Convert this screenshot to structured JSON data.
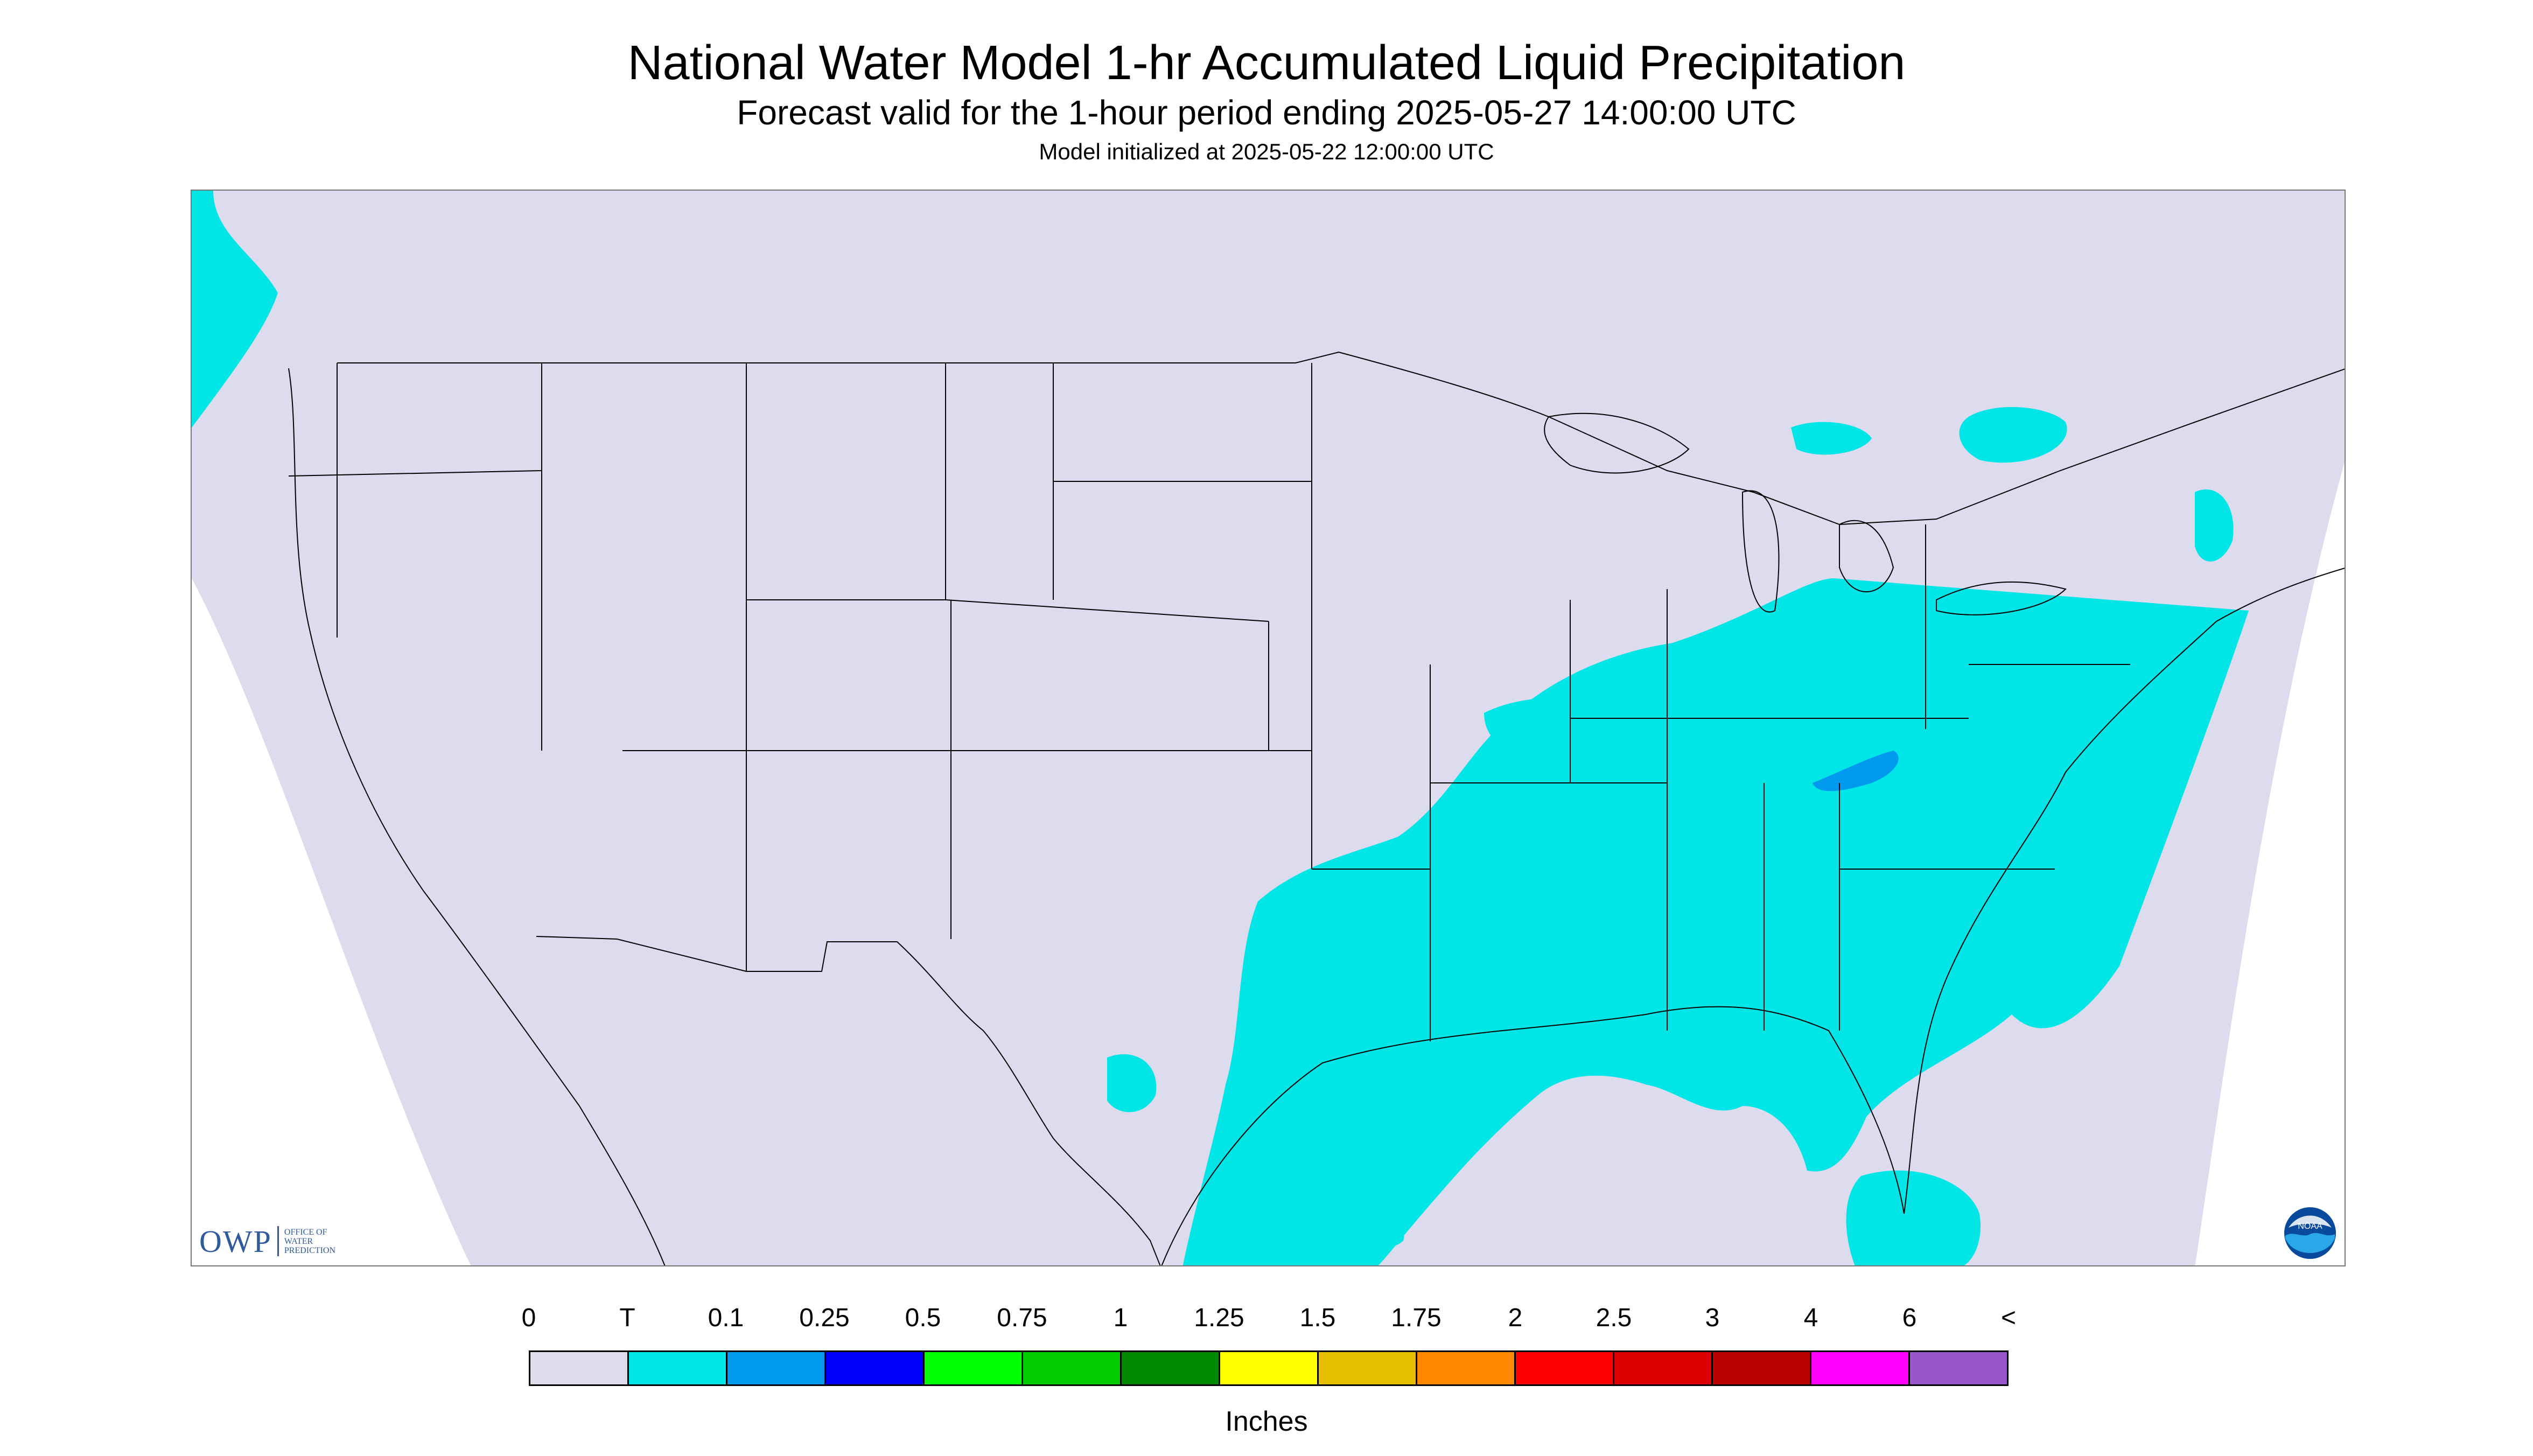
{
  "title": "National Water Model 1-hr Accumulated Liquid Precipitation",
  "subtitle": "Forecast valid for the 1-hour period ending 2025-05-27 14:00:00 UTC",
  "init_line": "Model initialized at 2025-05-22 12:00:00 UTC",
  "map": {
    "background_color": "#dcdcee",
    "boundary_color": "#000000",
    "precip_regions": [
      {
        "name": "Pacific Northwest coast",
        "category": "T"
      },
      {
        "name": "Southeast and Gulf Coast",
        "category": "T"
      },
      {
        "name": "Mid-Atlantic and Ohio Valley",
        "category": "T"
      },
      {
        "name": "Great Lakes / Southern Ontario",
        "category": "T"
      },
      {
        "name": "Virginia band",
        "category": "0.1"
      }
    ]
  },
  "legend": {
    "labels": [
      "0",
      "T",
      "0.1",
      "0.25",
      "0.5",
      "0.75",
      "1",
      "1.25",
      "1.5",
      "1.75",
      "2",
      "2.5",
      "3",
      "4",
      "6",
      "<"
    ],
    "colors": [
      "#dcdcee",
      "#00e5e5",
      "#0099ee",
      "#0000ff",
      "#00ff00",
      "#00cc00",
      "#008800",
      "#ffff00",
      "#e6bf00",
      "#ff8800",
      "#ff0000",
      "#dd0000",
      "#bb0000",
      "#ff00ff",
      "#9955cc"
    ],
    "units": "Inches"
  },
  "logos": {
    "owp": {
      "text": "OWP",
      "subtitle_lines": [
        "OFFICE OF",
        "WATER",
        "PREDICTION"
      ],
      "color": "#2f5a9c"
    },
    "noaa": {
      "text": "NOAA",
      "icon": "noaa-logo-icon"
    }
  }
}
